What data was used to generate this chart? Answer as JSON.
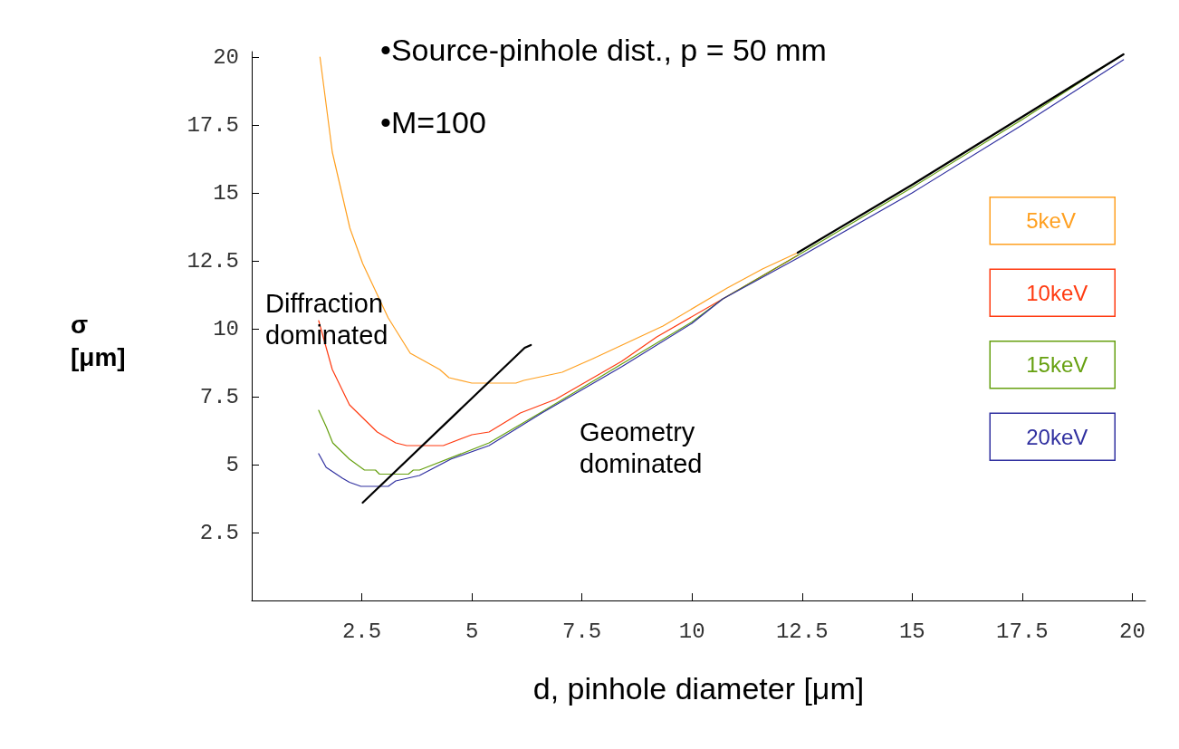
{
  "chart_data": {
    "type": "line",
    "xlabel": "d, pinhole diameter [μm]",
    "ylabel": "σ\n[μm]",
    "annotations": [
      "•Source-pinhole dist., p = 50 mm",
      "•M=100",
      "Diffraction\ndominated",
      "Geometry\ndominated"
    ],
    "xlim": [
      0,
      20.3
    ],
    "ylim": [
      0,
      20.2
    ],
    "xticks": [
      2.5,
      5,
      7.5,
      10,
      12.5,
      15,
      17.5,
      20
    ],
    "yticks": [
      2.5,
      5,
      7.5,
      10,
      12.5,
      15,
      17.5,
      20
    ],
    "grid": false,
    "legend": "right",
    "marker": "none",
    "line_style": "solid",
    "series": [
      {
        "name": "5keV",
        "color": "#ffa020",
        "x": [
          1.55,
          1.83,
          2.23,
          2.52,
          3.1,
          3.6,
          4.27,
          4.48,
          5.0,
          6.0,
          6.18,
          7.05,
          7.75,
          9.34,
          10.8,
          11.6,
          12.4
        ],
        "values": [
          20,
          16.5,
          13.7,
          12.4,
          10.4,
          9.1,
          8.5,
          8.2,
          8.0,
          8.0,
          8.1,
          8.4,
          8.9,
          10.1,
          11.5,
          12.2,
          12.8
        ]
      },
      {
        "name": "10keV",
        "color": "#ff3a10",
        "x": [
          1.52,
          1.83,
          2.22,
          2.85,
          3.27,
          3.52,
          4.35,
          5.0,
          5.39,
          6.1,
          6.9,
          8.4,
          9.2,
          10.7,
          12.4
        ],
        "values": [
          10.3,
          8.5,
          7.2,
          6.2,
          5.8,
          5.7,
          5.7,
          6.1,
          6.2,
          6.9,
          7.4,
          8.8,
          9.7,
          11.1,
          12.7
        ]
      },
      {
        "name": "15keV",
        "color": "#66a010",
        "x": [
          1.52,
          1.69,
          1.84,
          2.22,
          2.56,
          2.81,
          2.9,
          3.56,
          3.67,
          3.81,
          5.39,
          6.6,
          8.4,
          10.0,
          10.7,
          12.4,
          15,
          17.5,
          19.8
        ],
        "values": [
          7.0,
          6.4,
          5.8,
          5.2,
          4.8,
          4.8,
          4.65,
          4.65,
          4.8,
          4.8,
          5.8,
          6.95,
          8.7,
          10.25,
          11.1,
          12.7,
          15.2,
          17.7,
          20.1
        ]
      },
      {
        "name": "20keV",
        "color": "#3030a0",
        "x": [
          1.52,
          1.69,
          2.06,
          2.22,
          2.48,
          3.1,
          3.27,
          3.81,
          4.52,
          5.39,
          6.59,
          8.4,
          10.0,
          10.7,
          12.4,
          15,
          17.5,
          19.8
        ],
        "values": [
          5.4,
          4.9,
          4.5,
          4.35,
          4.2,
          4.2,
          4.4,
          4.6,
          5.2,
          5.7,
          6.9,
          8.6,
          10.2,
          11.1,
          12.6,
          15.0,
          17.5,
          19.9
        ]
      },
      {
        "color": "#000000",
        "x": [
          2.52,
          6.2,
          6.34
        ],
        "values": [
          3.6,
          9.3,
          9.4
        ]
      },
      {
        "color": "#000000",
        "x": [
          12.4,
          15,
          17.5,
          19.8
        ],
        "values": [
          12.8,
          15.3,
          17.8,
          20.1
        ]
      }
    ]
  }
}
